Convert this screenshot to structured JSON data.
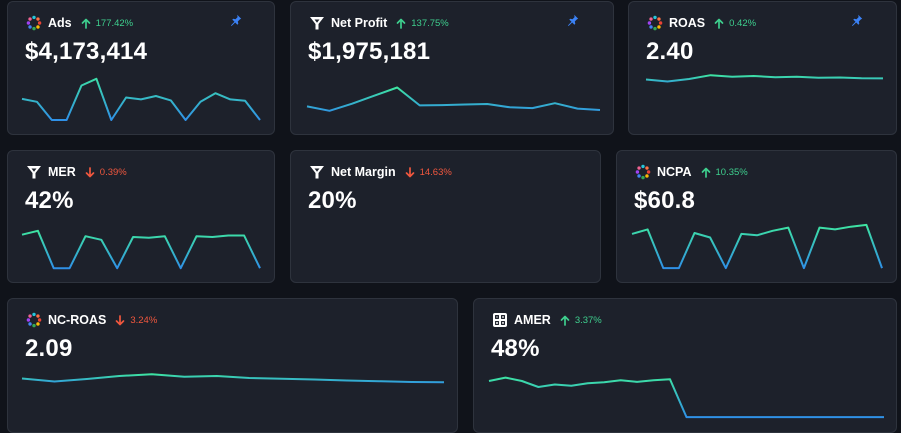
{
  "colors": {
    "up": "#3ecf8e",
    "down": "#f0573e",
    "pin": "#3b82f6",
    "line_start": "#3ee6a0",
    "line_end": "#2f8fe8"
  },
  "cards": [
    {
      "id": "ads",
      "title": "Ads",
      "icon": "multicolor-dots-icon",
      "trend": "up",
      "change": "177.42%",
      "value": "$4,173,414",
      "pinned": true,
      "series": [
        0.54,
        0.6,
        0.98,
        0.98,
        0.26,
        0.12,
        0.98,
        0.51,
        0.55,
        0.48,
        0.57,
        0.98,
        0.6,
        0.42,
        0.55,
        0.58,
        0.98
      ]
    },
    {
      "id": "net-profit",
      "title": "Net Profit",
      "icon": "funnel-logo-icon",
      "trend": "up",
      "change": "137.75%",
      "value": "$1,975,181",
      "pinned": true,
      "series": [
        0.72,
        0.88,
        0.62,
        0.32,
        0.02,
        0.68,
        0.67,
        0.65,
        0.63,
        0.75,
        0.78,
        0.6,
        0.8,
        0.85
      ]
    },
    {
      "id": "roas",
      "title": "ROAS",
      "icon": "multicolor-dots-icon",
      "trend": "up",
      "change": "0.42%",
      "value": "2.40",
      "pinned": true,
      "series": [
        0.45,
        0.65,
        0.4,
        0.02,
        0.18,
        0.1,
        0.22,
        0.18,
        0.28,
        0.25,
        0.32,
        0.34
      ]
    },
    {
      "id": "mer",
      "title": "MER",
      "icon": "funnel-logo-icon",
      "trend": "down",
      "change": "0.39%",
      "value": "42%",
      "pinned": false,
      "series": [
        0.12,
        0.02,
        0.98,
        0.98,
        0.16,
        0.25,
        0.98,
        0.18,
        0.2,
        0.16,
        0.98,
        0.16,
        0.18,
        0.14,
        0.14,
        0.98
      ]
    },
    {
      "id": "net-margin",
      "title": "Net Margin",
      "icon": "funnel-logo-icon",
      "trend": "down",
      "change": "14.63%",
      "value": "20%",
      "pinned": false,
      "series": []
    },
    {
      "id": "ncpa",
      "title": "NCPA",
      "icon": "multicolor-dots-icon",
      "trend": "up",
      "change": "10.35%",
      "value": "$60.8",
      "pinned": false,
      "series": [
        0.22,
        0.12,
        0.98,
        0.98,
        0.2,
        0.3,
        0.98,
        0.22,
        0.25,
        0.15,
        0.08,
        0.98,
        0.08,
        0.12,
        0.06,
        0.02,
        0.98
      ]
    },
    {
      "id": "nc-roas",
      "title": "NC-ROAS",
      "icon": "multicolor-dots-icon",
      "trend": "down",
      "change": "3.24%",
      "value": "2.09",
      "pinned": false,
      "series": [
        0.45,
        0.75,
        0.5,
        0.2,
        0.02,
        0.28,
        0.2,
        0.4,
        0.48,
        0.55,
        0.65,
        0.72,
        0.8,
        0.82
      ]
    },
    {
      "id": "amer",
      "title": "AMER",
      "icon": "calculator-icon",
      "trend": "up",
      "change": "3.37%",
      "value": "48%",
      "pinned": false,
      "series": [
        0.14,
        0.06,
        0.14,
        0.28,
        0.22,
        0.25,
        0.19,
        0.17,
        0.12,
        0.16,
        0.12,
        0.1,
        0.98,
        0.98,
        0.98,
        0.98,
        0.98,
        0.98,
        0.98,
        0.98,
        0.98,
        0.98,
        0.98,
        0.98,
        0.98
      ]
    }
  ]
}
